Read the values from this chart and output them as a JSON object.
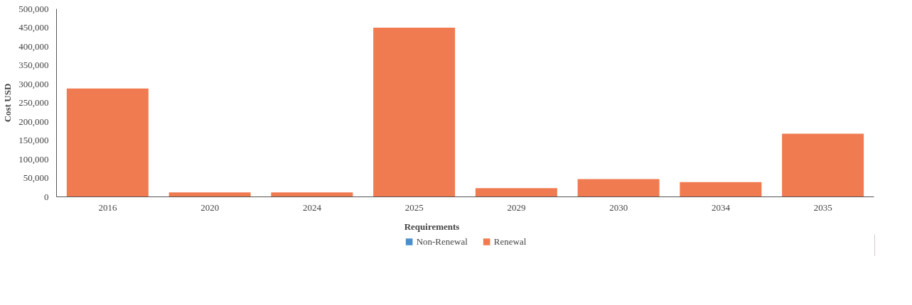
{
  "chart_data": {
    "type": "bar",
    "ylabel": "Cost USD",
    "legend_title": "Requirements",
    "legend": "bottom",
    "grid": false,
    "categories": [
      "2016",
      "2020",
      "2024",
      "2025",
      "2029",
      "2030",
      "2034",
      "2035"
    ],
    "ylim": [
      0,
      500000
    ],
    "yticks": [
      {
        "value": 0,
        "label": "0"
      },
      {
        "value": 50000,
        "label": "50,000"
      },
      {
        "value": 100000,
        "label": "100,000"
      },
      {
        "value": 150000,
        "label": "150,000"
      },
      {
        "value": 200000,
        "label": "200,000"
      },
      {
        "value": 250000,
        "label": "250,000"
      },
      {
        "value": 300000,
        "label": "300,000"
      },
      {
        "value": 350000,
        "label": "350,000"
      },
      {
        "value": 400000,
        "label": "400,000"
      },
      {
        "value": 450000,
        "label": "450,000"
      },
      {
        "value": 500000,
        "label": "500,000"
      }
    ],
    "series": [
      {
        "name": "Non-Renewal",
        "color": "#4a8fcb",
        "values": [
          0,
          0,
          0,
          0,
          0,
          0,
          0,
          0
        ]
      },
      {
        "name": "Renewal",
        "color": "#f07b50",
        "values": [
          288000,
          12000,
          12000,
          450000,
          23000,
          47000,
          39000,
          168000
        ]
      }
    ]
  }
}
